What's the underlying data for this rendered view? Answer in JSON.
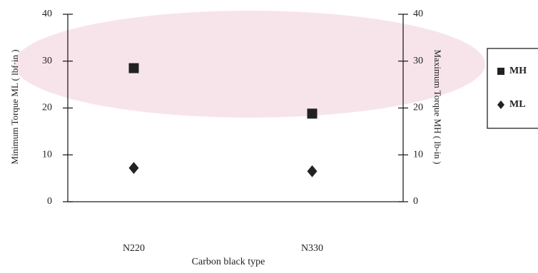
{
  "chart_data": {
    "type": "scatter",
    "xlabel": "Carbon black type",
    "ylabel": "Minimum Torque ML ( lbf·in )",
    "y2label": "Maximum Torque MH ( lb-in )",
    "categories": [
      "N220",
      "N330"
    ],
    "series": [
      {
        "name": "MH",
        "color": "#222222",
        "marker": "square",
        "axis": "y2",
        "values": [
          28.5,
          18.8
        ]
      },
      {
        "name": "ML",
        "color": "#222222",
        "marker": "diamond",
        "values": [
          7.2,
          6.5
        ]
      }
    ],
    "ylim": [
      0,
      40
    ],
    "yticks": [
      0,
      10,
      20,
      30,
      40
    ],
    "y2lim": [
      0,
      40
    ],
    "y2ticks": [
      0,
      10,
      20,
      30,
      40
    ],
    "legend": "right"
  }
}
